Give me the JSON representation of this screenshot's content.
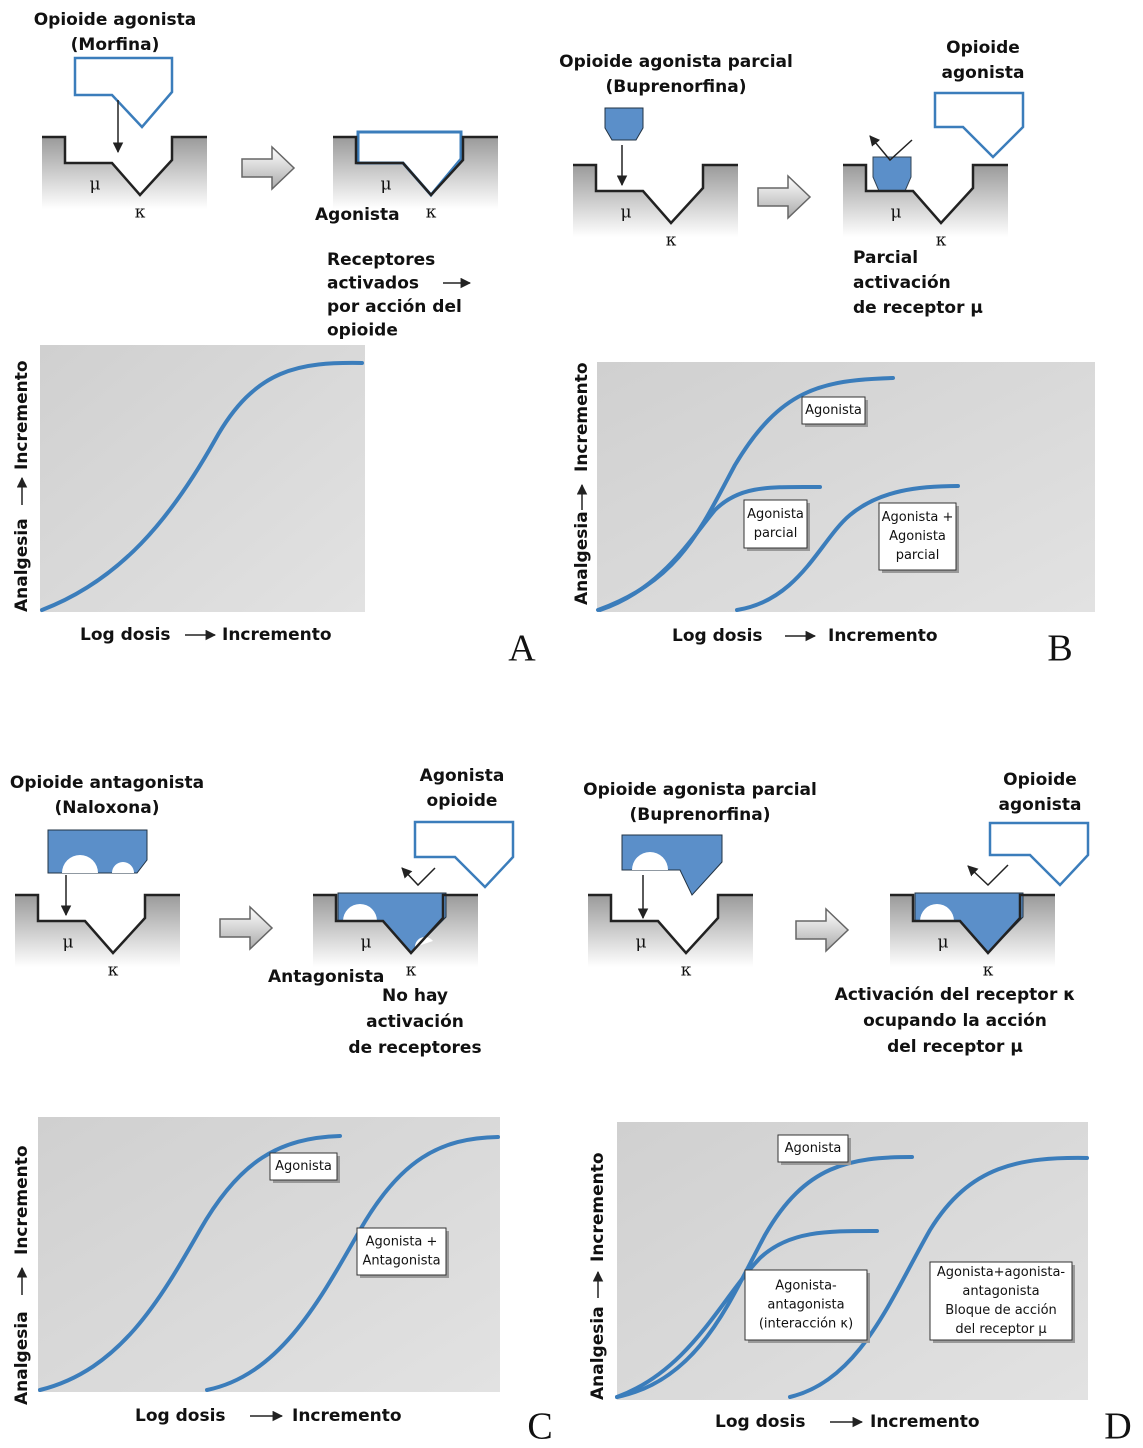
{
  "receptors": {
    "mu": "μ",
    "kappa": "κ"
  },
  "panels": [
    {
      "letter": "A",
      "top_left_label": [
        "Opioide agonista",
        "(Morfina)"
      ],
      "result_label": "Agonista",
      "caption": [
        "Receptores",
        "activados",
        "por acción del",
        "opioide"
      ],
      "y_axis_label": "Analgesia",
      "y_axis_end": "Incremento",
      "x_axis_label": "Log dosis",
      "x_axis_end": "Incremento",
      "curve_labels": []
    },
    {
      "letter": "B",
      "top_left_label": [
        "Opioide agonista parcial",
        "(Buprenorfina)"
      ],
      "top_right_label": [
        "Opioide",
        "agonista"
      ],
      "caption": [
        "Parcial",
        "activación",
        "de receptor μ"
      ],
      "y_axis_label": "Analgesia",
      "y_axis_end": "Incremento",
      "x_axis_label": "Log dosis",
      "x_axis_end": "Incremento",
      "curve_labels": [
        [
          "Agonista"
        ],
        [
          "Agonista",
          "parcial"
        ],
        [
          "Agonista +",
          "Agonista",
          "parcial"
        ]
      ]
    },
    {
      "letter": "C",
      "top_left_label": [
        "Opioide antagonista",
        "(Naloxona)"
      ],
      "top_right_label": [
        "Agonista",
        "opioide"
      ],
      "result_label": "Antagonista",
      "caption": [
        "No hay",
        "activación",
        "de receptores"
      ],
      "y_axis_label": "Analgesia",
      "y_axis_end": "Incremento",
      "x_axis_label": "Log dosis",
      "x_axis_end": "Incremento",
      "curve_labels": [
        [
          "Agonista"
        ],
        [
          "Agonista +",
          "Antagonista"
        ]
      ]
    },
    {
      "letter": "D",
      "top_left_label": [
        "Opioide agonista parcial",
        "(Buprenorfina)"
      ],
      "top_right_label": [
        "Opioide",
        "agonista"
      ],
      "caption": [
        "Activación del receptor κ",
        "ocupando la acción",
        "del receptor μ"
      ],
      "y_axis_label": "Analgesia",
      "y_axis_end": "Incremento",
      "x_axis_label": "Log dosis",
      "x_axis_end": "Incremento",
      "curve_labels": [
        [
          "Agonista"
        ],
        [
          "Agonista-",
          "antagonista",
          "(interacción κ)"
        ],
        [
          "Agonista+agonista-",
          "antagonista",
          "Bloque de acción",
          "del receptor μ"
        ]
      ]
    }
  ]
}
